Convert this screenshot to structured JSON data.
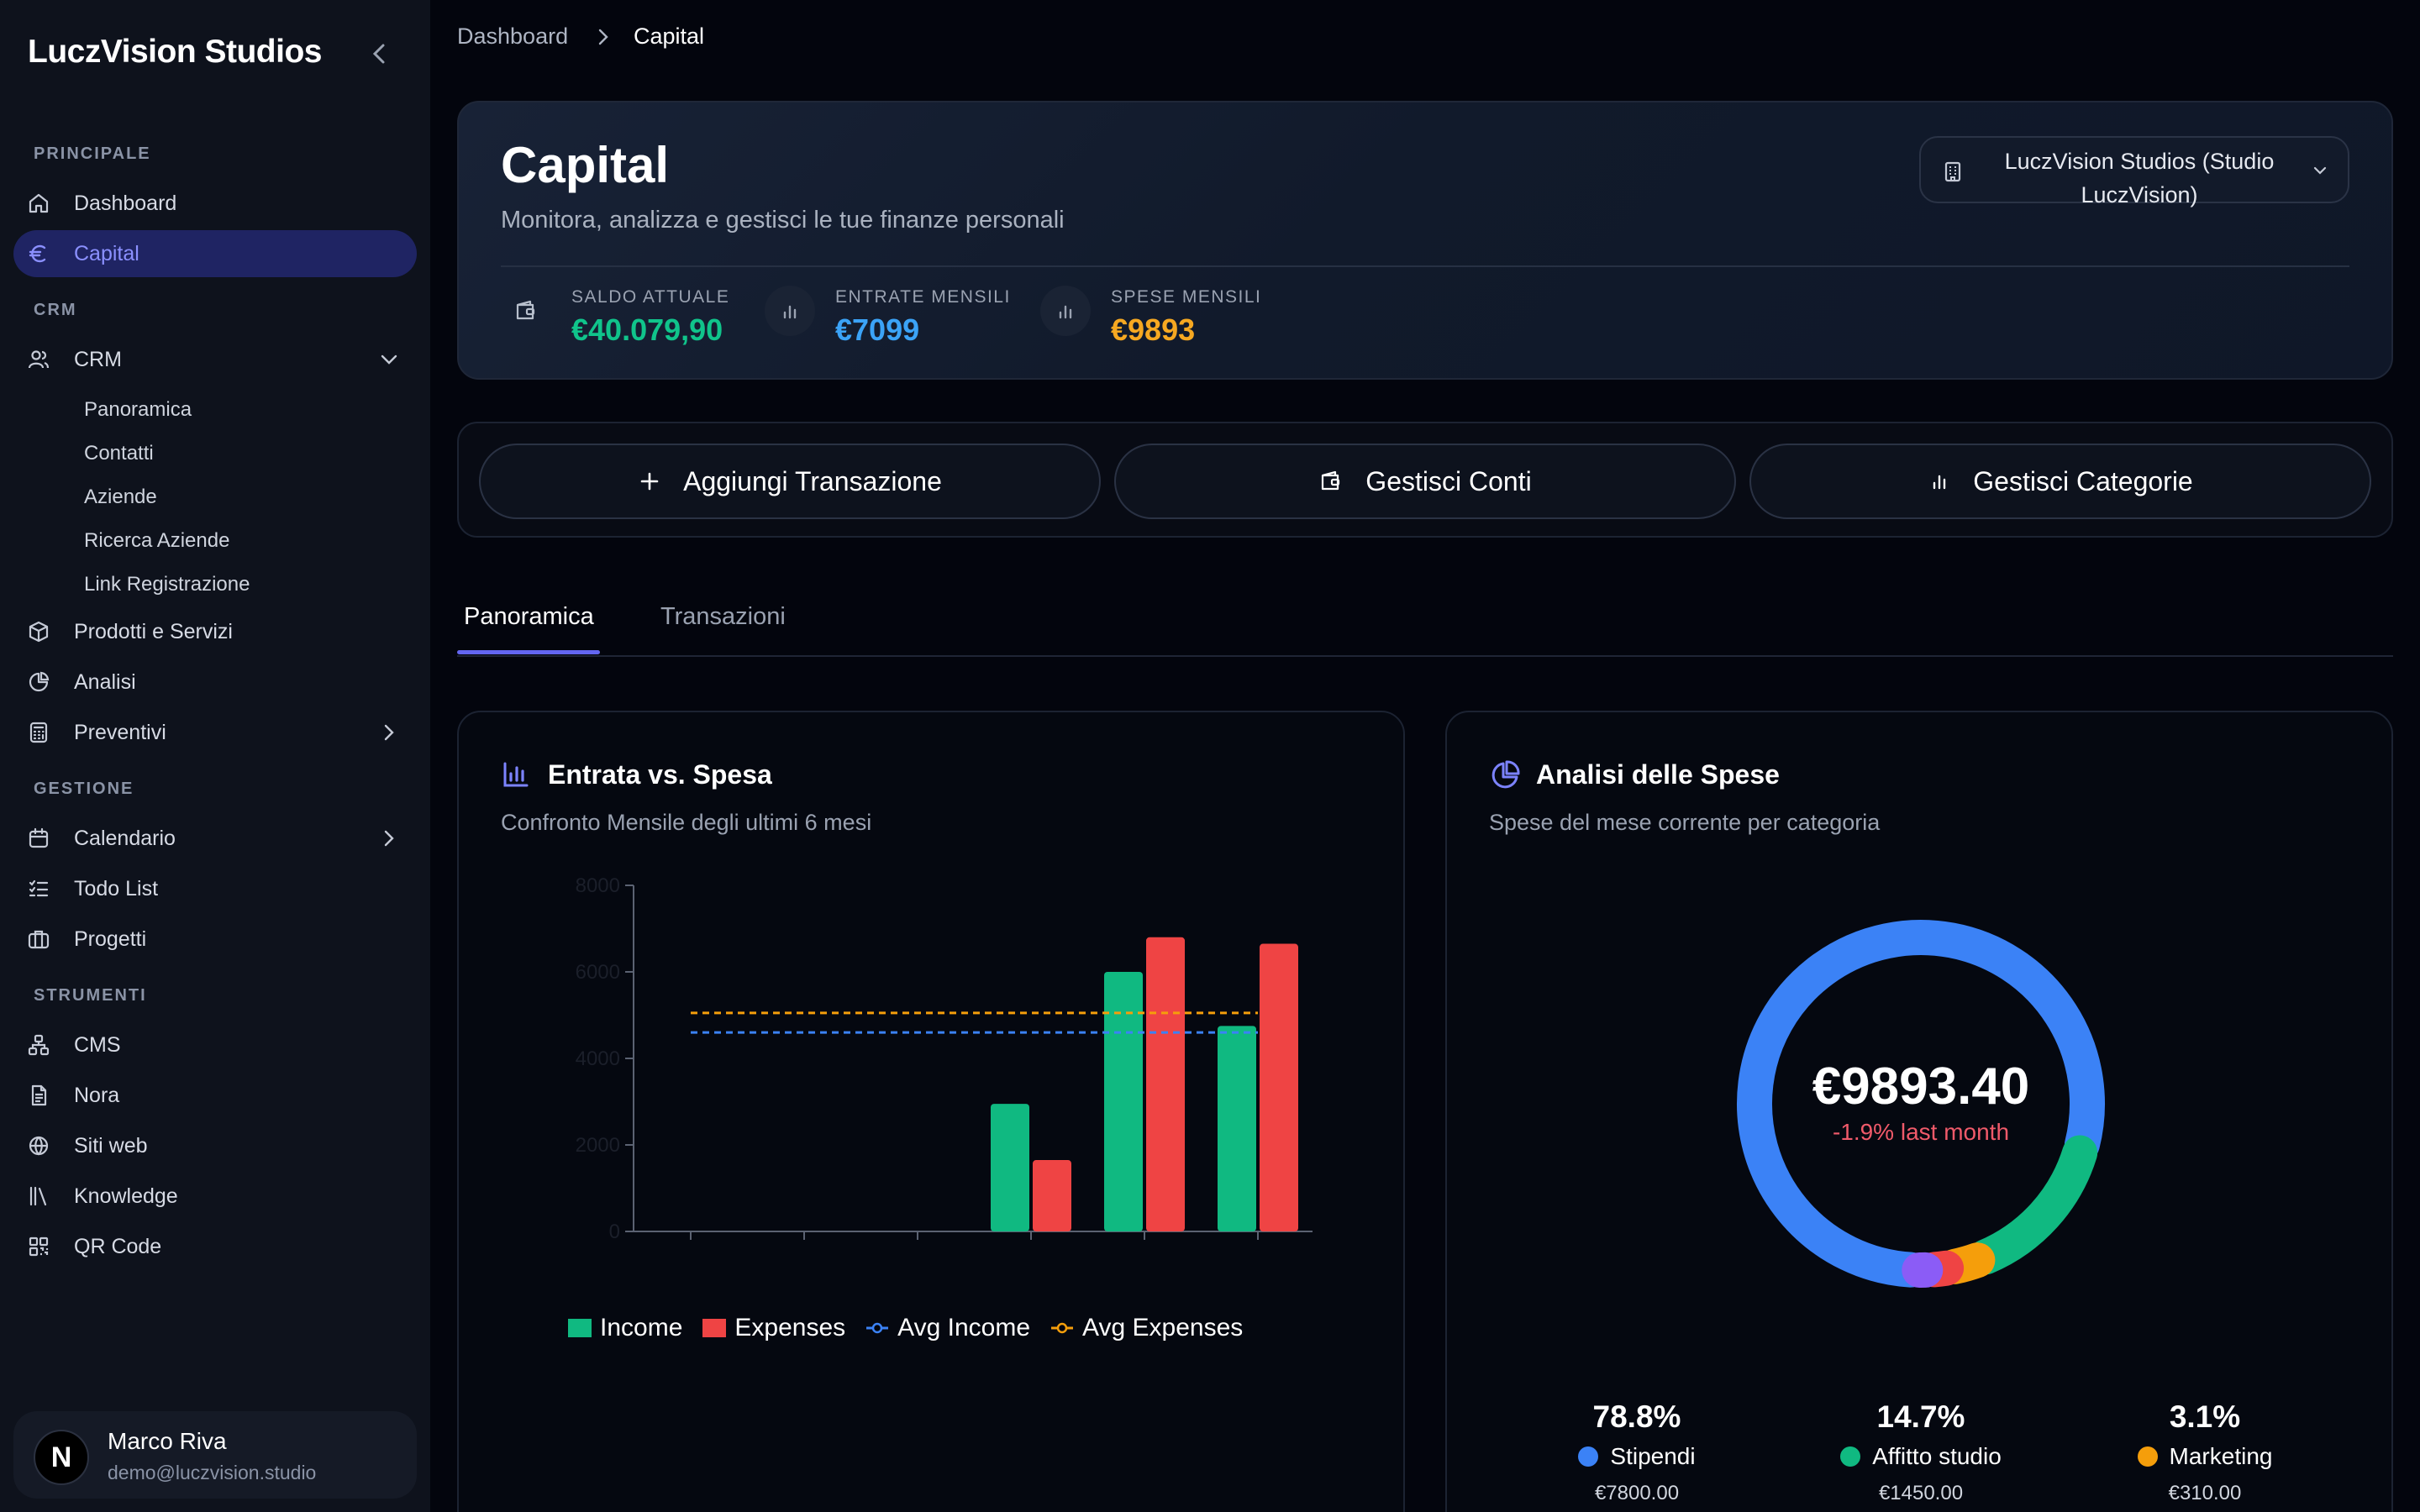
{
  "sidebar": {
    "brand": "LuczVision Studios",
    "sections": {
      "principale": "PRINCIPALE",
      "crm": "CRM",
      "gestione": "GESTIONE",
      "strumenti": "STRUMENTI"
    },
    "items": {
      "dashboard": "Dashboard",
      "capital": "Capital",
      "crm": "CRM",
      "prodotti": "Prodotti e Servizi",
      "analisi": "Analisi",
      "preventivi": "Preventivi",
      "calendario": "Calendario",
      "todo": "Todo List",
      "progetti": "Progetti",
      "cms": "CMS",
      "nora": "Nora",
      "siti": "Siti web",
      "knowledge": "Knowledge",
      "qr": "QR Code"
    },
    "crm_sub": [
      "Panoramica",
      "Contatti",
      "Aziende",
      "Ricerca Aziende",
      "Link Registrazione"
    ],
    "user": {
      "initial": "N",
      "name": "Marco Riva",
      "email": "demo@luczvision.studio"
    }
  },
  "breadcrumb": {
    "parent": "Dashboard",
    "current": "Capital"
  },
  "header": {
    "title": "Capital",
    "subtitle": "Monitora, analizza e gestisci le tue finanze personali",
    "studio_line1": "LuczVision Studios (Studio",
    "studio_line2": "LuczVision)",
    "stats": [
      {
        "label": "SALDO ATTUALE",
        "value": "€40.079,90",
        "color": "#10c48b"
      },
      {
        "label": "ENTRATE MENSILI",
        "value": "€7099",
        "color": "#3ba3f7"
      },
      {
        "label": "SPESE MENSILI",
        "value": "€9893",
        "color": "#f6a821"
      }
    ]
  },
  "actions": {
    "add": "Aggiungi Transazione",
    "accounts": "Gestisci Conti",
    "categories": "Gestisci Categorie"
  },
  "tabs": {
    "overview": "Panoramica",
    "transactions": "Transazioni"
  },
  "income_chart": {
    "title": "Entrata vs. Spesa",
    "subtitle": "Confronto Mensile degli ultimi 6 mesi",
    "legend": {
      "income": "Income",
      "expenses": "Expenses",
      "avg_income": "Avg Income",
      "avg_expenses": "Avg Expenses"
    },
    "colors": {
      "income": "#10b981",
      "expenses": "#ef4444",
      "avg_income": "#3b82f6",
      "avg_expenses": "#f59e0b"
    }
  },
  "chart_data": {
    "type": "bar",
    "categories": [
      "",
      "",
      "",
      "",
      "",
      ""
    ],
    "series": [
      {
        "name": "Income",
        "values": [
          0,
          0,
          0,
          2950,
          6000,
          4750
        ]
      },
      {
        "name": "Expenses",
        "values": [
          0,
          0,
          0,
          1650,
          6800,
          6650
        ]
      }
    ],
    "avg_income": 4600,
    "avg_expenses": 5050,
    "ylim": [
      0,
      8000
    ],
    "yticks": [
      0,
      2000,
      4000,
      6000,
      8000
    ],
    "grid": false,
    "legend_position": "bottom"
  },
  "expense_chart": {
    "title": "Analisi delle Spese",
    "subtitle": "Spese del mese corrente per categoria",
    "total": "€9893.40",
    "change": "-1.9% last month",
    "slices": [
      {
        "name": "Stipendi",
        "pct": 78.8,
        "pct_label": "78.8%",
        "amount": "€7800.00",
        "color": "#3b82f6"
      },
      {
        "name": "Affitto studio",
        "pct": 14.7,
        "pct_label": "14.7%",
        "amount": "€1450.00",
        "color": "#10b981"
      },
      {
        "name": "Marketing",
        "pct": 3.1,
        "pct_label": "3.1%",
        "amount": "€310.00",
        "color": "#f59e0b"
      },
      {
        "pct": 2.0,
        "color": "#ef4444"
      },
      {
        "pct": 1.4,
        "color": "#8b5cf6"
      }
    ]
  }
}
